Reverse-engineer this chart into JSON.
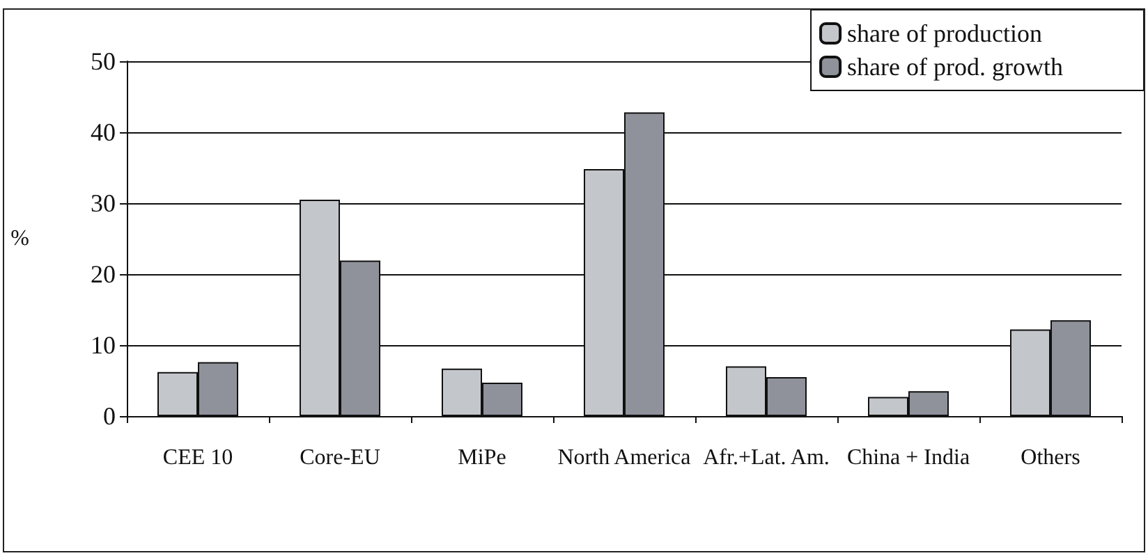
{
  "chart_data": {
    "type": "bar",
    "ylabel": "%",
    "categories": [
      "CEE 10",
      "Core-EU",
      "MiPe",
      "North America",
      "Afr.+Lat. Am.",
      "China + India",
      "Others"
    ],
    "series": [
      {
        "name": "share of production",
        "color": "#c3c6cb",
        "values": [
          6.2,
          30.5,
          6.7,
          34.8,
          7.0,
          2.7,
          12.2
        ]
      },
      {
        "name": "share of prod. growth",
        "color": "#8f929b",
        "values": [
          7.6,
          21.9,
          4.7,
          42.8,
          5.5,
          3.5,
          13.5
        ]
      }
    ],
    "ylim": [
      0,
      50
    ],
    "yticks": [
      0,
      10,
      20,
      30,
      40,
      50
    ],
    "grid": "y",
    "legend": "top right"
  }
}
